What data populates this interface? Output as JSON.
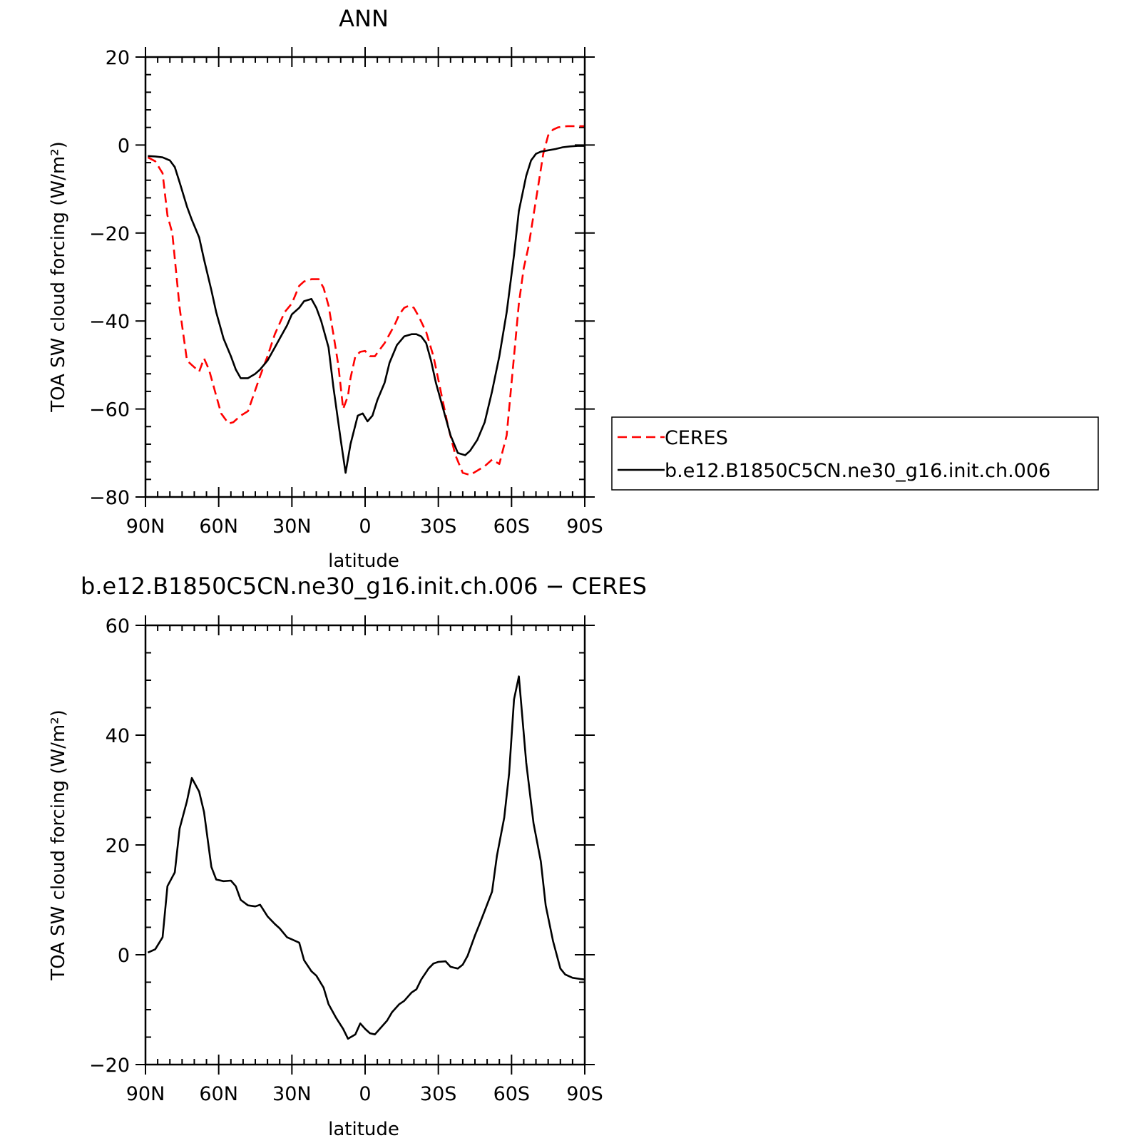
{
  "chart_data": [
    {
      "type": "line",
      "title": "ANN",
      "xlabel": "latitude",
      "ylabel": "TOA SW cloud forcing (W/m²)",
      "xlim": [
        90,
        -90
      ],
      "ylim": [
        -80,
        20
      ],
      "yticks": [
        20,
        0,
        -20,
        -40,
        -60,
        -80
      ],
      "yticklabels": [
        "20",
        "0",
        "−20",
        "−40",
        "−60",
        "−80"
      ],
      "xticks": [
        90,
        60,
        30,
        0,
        -30,
        -60,
        -90
      ],
      "xticklabels": [
        "90N",
        "60N",
        "30N",
        "0",
        "30S",
        "60S",
        "90S"
      ],
      "grid": false,
      "legend_position": "right",
      "series": [
        {
          "name": "CERES",
          "color": "#ff0000",
          "dash": "dashed",
          "x": [
            89,
            86,
            83,
            81,
            79,
            76,
            73,
            71,
            68,
            66,
            64,
            61,
            59,
            56,
            54,
            51,
            48,
            43,
            40,
            37,
            33,
            30,
            27,
            25,
            22,
            19,
            17,
            15,
            13,
            11,
            9,
            7,
            6,
            4,
            2,
            0,
            -2,
            -4,
            -6,
            -8,
            -10,
            -12,
            -14,
            -16,
            -18,
            -20,
            -22,
            -25,
            -28,
            -31,
            -34,
            -37,
            -40,
            -43,
            -46,
            -49,
            -52,
            -55,
            -58,
            -61,
            -63,
            -65,
            -67,
            -69,
            -71,
            -73,
            -75,
            -77,
            -79,
            -81,
            -83,
            -85,
            -88,
            -90
          ],
          "y": [
            -2.8,
            -3.7,
            -6.4,
            -16,
            -20,
            -37,
            -49,
            -50,
            -51.5,
            -48.5,
            -51,
            -57,
            -61,
            -63.3,
            -63,
            -61.5,
            -60.5,
            -52.5,
            -48,
            -43,
            -38,
            -36,
            -32,
            -31,
            -30.5,
            -30.5,
            -32.5,
            -36.5,
            -43,
            -50,
            -60,
            -57,
            -53,
            -48,
            -47,
            -46.8,
            -48,
            -48,
            -46.5,
            -45,
            -43,
            -41,
            -38.5,
            -37,
            -36.5,
            -37,
            -39,
            -42.5,
            -48,
            -56,
            -64,
            -70.5,
            -74.5,
            -75,
            -74,
            -73,
            -71.5,
            -72.5,
            -66,
            -48,
            -36,
            -28,
            -23,
            -16,
            -9,
            -2,
            2.2,
            3.5,
            4,
            4.2,
            4.3,
            4.3,
            4.3,
            4.3
          ]
        },
        {
          "name": "b.e12.B1850C5CN.ne30_g16.init.ch.006",
          "color": "#000000",
          "dash": "solid",
          "x": [
            89,
            86,
            83,
            80,
            78,
            76,
            73,
            71,
            68,
            66,
            63,
            61,
            58,
            55,
            53,
            51,
            48,
            45,
            43,
            40,
            37,
            35,
            32,
            30,
            27,
            25,
            22,
            20,
            18,
            15,
            13,
            10,
            8,
            6,
            3,
            1,
            -1,
            -3,
            -5,
            -8,
            -10,
            -13,
            -16,
            -19,
            -21,
            -23,
            -25,
            -27,
            -29,
            -32,
            -35,
            -38,
            -41,
            -43,
            -46,
            -49,
            -52,
            -55,
            -58,
            -61,
            -63,
            -66,
            -68,
            -70,
            -72,
            -75,
            -78,
            -81,
            -84,
            -87,
            -90
          ],
          "y": [
            -2.5,
            -2.6,
            -2.8,
            -3.5,
            -5,
            -8.5,
            -14,
            -17,
            -21,
            -26,
            -33,
            -38,
            -44,
            -48,
            -51,
            -53,
            -53,
            -52,
            -51,
            -49,
            -46,
            -44,
            -41,
            -38.5,
            -37,
            -35.5,
            -35,
            -37,
            -40,
            -46,
            -55,
            -67,
            -74.5,
            -68,
            -61.5,
            -61,
            -62.8,
            -61.5,
            -58,
            -54,
            -49.5,
            -45.5,
            -43.5,
            -43,
            -43,
            -43.5,
            -45,
            -49,
            -54,
            -60,
            -66,
            -70,
            -70.5,
            -69.5,
            -67,
            -63,
            -56,
            -48,
            -38,
            -25,
            -15,
            -7,
            -3.5,
            -2,
            -1.5,
            -1.2,
            -0.9,
            -0.5,
            -0.3,
            -0.2,
            -0.2
          ]
        }
      ]
    },
    {
      "type": "line",
      "title": "b.e12.B1850C5CN.ne30_g16.init.ch.006 − CERES",
      "xlabel": "latitude",
      "ylabel": "TOA SW cloud forcing (W/m²)",
      "xlim": [
        90,
        -90
      ],
      "ylim": [
        -20,
        60
      ],
      "yticks": [
        60,
        40,
        20,
        0,
        -20
      ],
      "yticklabels": [
        "60",
        "40",
        "20",
        "0",
        "−20"
      ],
      "xticks": [
        90,
        60,
        30,
        0,
        -30,
        -60,
        -90
      ],
      "xticklabels": [
        "90N",
        "60N",
        "30N",
        "0",
        "30S",
        "60S",
        "90S"
      ],
      "grid": false,
      "series": [
        {
          "color": "#000000",
          "dash": "solid",
          "x": [
            89,
            86,
            83,
            81,
            78,
            76,
            73,
            71,
            68,
            66,
            63,
            61,
            58,
            55,
            53,
            51,
            48,
            45,
            43,
            40,
            37,
            35,
            32,
            30,
            27,
            25,
            22,
            20,
            17,
            15,
            12,
            9,
            7,
            4,
            2,
            0,
            -2,
            -4,
            -6,
            -9,
            -11,
            -14,
            -16,
            -19,
            -21,
            -23,
            -26,
            -28,
            -30,
            -33,
            -35,
            -38,
            -40,
            -42,
            -45,
            -47,
            -49,
            -52,
            -54,
            -57,
            -59,
            -61,
            -63,
            -66,
            -69,
            -72,
            -74,
            -77,
            -80,
            -82,
            -85,
            -88,
            -90
          ],
          "y": [
            0.4,
            1,
            3.2,
            12.5,
            15,
            23,
            28,
            32.2,
            29.7,
            26,
            16,
            13.7,
            13.4,
            13.5,
            12.5,
            10,
            9,
            8.8,
            9.1,
            7,
            5.6,
            4.8,
            3.2,
            2.8,
            2.2,
            -1,
            -3,
            -3.8,
            -6,
            -9,
            -11.4,
            -13.5,
            -15.3,
            -14.5,
            -12.5,
            -13.5,
            -14.3,
            -14.5,
            -13.5,
            -12,
            -10.5,
            -9,
            -8.4,
            -6.9,
            -6.3,
            -4.5,
            -2.5,
            -1.6,
            -1.3,
            -1.2,
            -2.2,
            -2.5,
            -1.8,
            -0.2,
            3.5,
            5.7,
            8,
            11.5,
            18,
            25,
            33,
            46.5,
            50.7,
            35,
            24,
            17,
            9,
            2.5,
            -2.5,
            -3.6,
            -4.2,
            -4.4,
            -4.5
          ]
        }
      ]
    }
  ]
}
